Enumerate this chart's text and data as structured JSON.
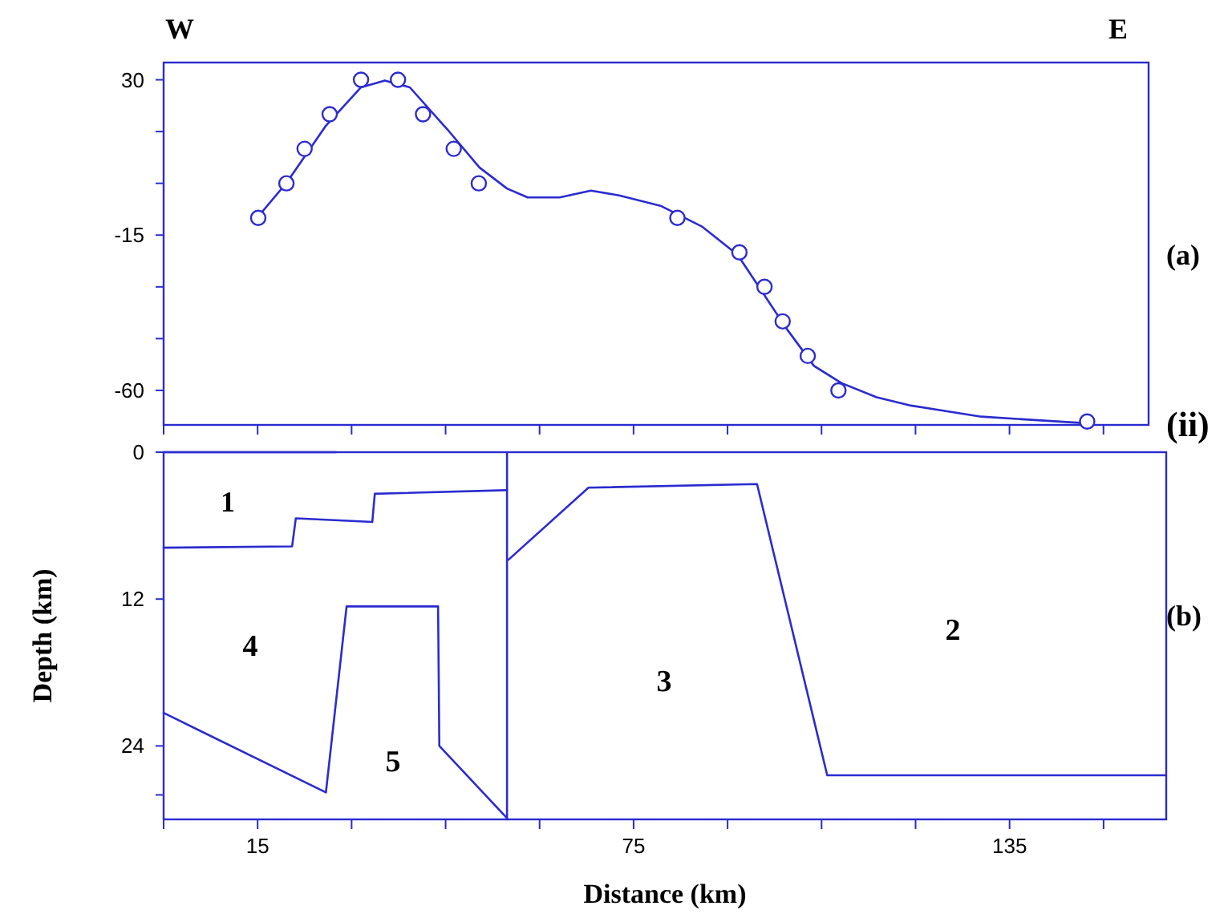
{
  "chart_data": [
    {
      "type": "scatter",
      "xlim": [
        0,
        157.2
      ],
      "ylim": [
        -70,
        35
      ],
      "tick_labels": "y",
      "marker": "circle",
      "yticks": [
        30,
        {
          "value": 15,
          "label": null
        },
        {
          "value": 0,
          "label": null
        },
        -15,
        {
          "value": -30,
          "label": null
        },
        {
          "value": -45,
          "label": null
        },
        -60
      ],
      "xticks": [
        0,
        15,
        30,
        45,
        60,
        75,
        90,
        105,
        120,
        135,
        150
      ],
      "annotations": [
        "W",
        "E",
        "(a)",
        "(ii)"
      ],
      "series": [
        {
          "color": "#2b2bd0",
          "x": [
            15.1,
            19.6,
            22.5,
            26.5,
            31.5,
            37.4,
            41.4,
            46.3,
            50.3,
            82,
            91.9,
            95.9,
            98.8,
            102.8,
            107.7,
            147.4
          ],
          "values": [
            -10,
            0,
            10,
            20,
            30,
            30,
            20,
            10,
            0,
            -10,
            -20,
            -30,
            -40,
            -50,
            -60,
            -69
          ]
        },
        {
          "type": "line",
          "marker": "none",
          "color": "#2b2bd0",
          "x": [
            15.1,
            19.6,
            25.9,
            31.5,
            35.3,
            39.3,
            45.3,
            50.4,
            54.8,
            58.1,
            63.2,
            68.2,
            72.7,
            79.3,
            86,
            91.6,
            94.9,
            99.3,
            103.8,
            108.2,
            113.8,
            119.3,
            130.5,
            147.2
          ],
          "values": [
            -9.6,
            0.1,
            16.7,
            27.8,
            29.8,
            27.8,
            15.6,
            4.6,
            -1.5,
            -4.1,
            -4.1,
            -2.1,
            -3.5,
            -6.5,
            -12.6,
            -20.7,
            -29.7,
            -41.8,
            -52.9,
            -57.9,
            -62,
            -64.4,
            -67.6,
            -69.5
          ]
        }
      ]
    },
    {
      "type": "line",
      "xlim": [
        0,
        160
      ],
      "ylim": [
        30,
        0
      ],
      "xlabel": "Distance (km)",
      "ylabel": "Depth (km)",
      "xticks": [
        {
          "value": 0,
          "label": null
        },
        15,
        {
          "value": 30,
          "label": null
        },
        {
          "value": 45,
          "label": null
        },
        {
          "value": 60,
          "label": null
        },
        75,
        {
          "value": 90,
          "label": null
        },
        {
          "value": 105,
          "label": null
        },
        {
          "value": 120,
          "label": null
        },
        135,
        {
          "value": 150,
          "label": null
        }
      ],
      "yticks": [
        0,
        12,
        24,
        {
          "value": 28,
          "label": null
        }
      ],
      "annotations": [
        "(b)",
        "1",
        "4",
        "5",
        "3",
        "2"
      ],
      "series": [
        {
          "color": "#2b2bd0",
          "x": [
            0,
            27.5
          ],
          "values": [
            0,
            0
          ]
        },
        {
          "color": "#2b2bd0",
          "x": [
            0,
            20.5,
            21.1,
            33.3,
            33.7,
            54.8
          ],
          "values": [
            7.8,
            7.7,
            5.4,
            5.7,
            3.4,
            3.1
          ]
        },
        {
          "color": "#2b2bd0",
          "x": [
            54.8,
            54.8
          ],
          "values": [
            0,
            30
          ]
        },
        {
          "color": "#2b2bd0",
          "x": [
            0,
            25.9,
            29.2,
            43.8,
            44,
            54.8
          ],
          "values": [
            21.3,
            27.8,
            12.6,
            12.6,
            24,
            29.9
          ]
        },
        {
          "color": "#2b2bd0",
          "x": [
            55,
            67.8,
            94.7,
            105.9,
            159.9
          ],
          "values": [
            8.8,
            2.9,
            2.6,
            26.4,
            26.4
          ]
        }
      ]
    }
  ]
}
